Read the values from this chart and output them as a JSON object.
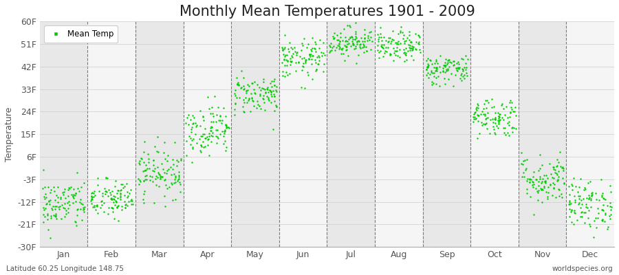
{
  "title": "Monthly Mean Temperatures 1901 - 2009",
  "ylabel": "Temperature",
  "xlabel_bottom_left": "Latitude 60.25 Longitude 148.75",
  "xlabel_bottom_right": "worldspecies.org",
  "legend_label": "Mean Temp",
  "dot_color": "#00cc00",
  "background_color": "#f2f2f2",
  "band_colors": [
    "#e8e8e8",
    "#f5f5f5"
  ],
  "ylim": [
    -30,
    60
  ],
  "yticks": [
    -30,
    -21,
    -12,
    -3,
    6,
    15,
    24,
    33,
    42,
    51,
    60
  ],
  "ytick_labels": [
    "-30F",
    "-21F",
    "-12F",
    "-3F",
    "6F",
    "15F",
    "24F",
    "33F",
    "42F",
    "51F",
    "60F"
  ],
  "month_names": [
    "Jan",
    "Feb",
    "Mar",
    "Apr",
    "May",
    "Jun",
    "Jul",
    "Aug",
    "Sep",
    "Oct",
    "Nov",
    "Dec"
  ],
  "month_means_F": [
    -13,
    -11,
    0,
    17,
    31,
    45,
    52,
    50,
    41,
    22,
    -3,
    -13
  ],
  "month_stds_F": [
    5,
    4,
    5,
    5,
    4,
    4,
    3,
    3,
    3,
    4,
    5,
    5
  ],
  "n_years": 109,
  "dot_size": 3,
  "title_fontsize": 15,
  "axis_fontsize": 9,
  "tick_fontsize": 9,
  "random_seed": 42
}
